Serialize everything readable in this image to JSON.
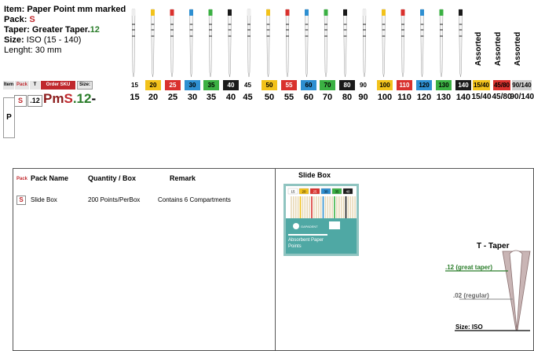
{
  "item": {
    "item_label": "Item: Paper Point mm marked",
    "pack_label": "Pack: ",
    "pack_value": "S",
    "taper_label": "Taper: Greater Taper.",
    "taper_value": "12",
    "size_label": "Size:",
    "size_value": " ISO (15 - 140)",
    "length_label": "Lenght: 30 mm"
  },
  "assorted_labels": [
    "Assorted",
    "Assorted",
    "Assorted"
  ],
  "header_tabs": {
    "item": "Item",
    "pack": "Pack",
    "t": "T",
    "order_sku": "Order SKU",
    "size": "Size:"
  },
  "size_chips": [
    {
      "label": "15",
      "color": "#ffffff",
      "text": "#000000"
    },
    {
      "label": "20",
      "color": "#f2c21b",
      "text": "#000000"
    },
    {
      "label": "25",
      "color": "#d9312d",
      "text": "#ffffff"
    },
    {
      "label": "30",
      "color": "#2e8fd1",
      "text": "#000000"
    },
    {
      "label": "35",
      "color": "#3bb043",
      "text": "#000000"
    },
    {
      "label": "40",
      "color": "#1a1a1a",
      "text": "#ffffff"
    },
    {
      "label": "45",
      "color": "#ffffff",
      "text": "#000000"
    },
    {
      "label": "50",
      "color": "#f2c21b",
      "text": "#000000"
    },
    {
      "label": "55",
      "color": "#d9312d",
      "text": "#ffffff"
    },
    {
      "label": "60",
      "color": "#2e8fd1",
      "text": "#000000"
    },
    {
      "label": "70",
      "color": "#3bb043",
      "text": "#000000"
    },
    {
      "label": "80",
      "color": "#1a1a1a",
      "text": "#ffffff"
    },
    {
      "label": "90",
      "color": "#ffffff",
      "text": "#000000"
    },
    {
      "label": "100",
      "color": "#f2c21b",
      "text": "#000000"
    },
    {
      "label": "110",
      "color": "#d9312d",
      "text": "#ffffff"
    },
    {
      "label": "120",
      "color": "#2e8fd1",
      "text": "#000000"
    },
    {
      "label": "130",
      "color": "#3bb043",
      "text": "#000000"
    },
    {
      "label": "140",
      "color": "#1a1a1a",
      "text": "#ffffff"
    },
    {
      "label": "15/40",
      "color": "#f2c21b",
      "text": "#000000"
    },
    {
      "label": "45/80",
      "color": "#d9312d",
      "text": "#000000"
    },
    {
      "label": "90/140",
      "color": "#cccccc",
      "text": "#000000"
    }
  ],
  "sku_row": {
    "pack": "S",
    "taper": ".12",
    "prefix": "Pm",
    "pack_letter": "S",
    "taper_code": ".12",
    "dash": "-",
    "sizes": [
      "15",
      "20",
      "25",
      "30",
      "35",
      "40",
      "45",
      "50",
      "55",
      "60",
      "70",
      "80",
      "90",
      "100",
      "110",
      "120",
      "130",
      "140",
      "15/40",
      "45/80",
      "90/140"
    ]
  },
  "p_label": "P",
  "table": {
    "pack_head": "Pack",
    "pack_name_head": "Pack Name",
    "quantity_head": "Quantity / Box",
    "remark_head": "Remark",
    "row_pack": "S",
    "row_name": "Slide Box",
    "row_quantity": "200 Points/PerBox",
    "row_remark": "Contains 6 Compartments"
  },
  "slide_box": {
    "title": "Slide Box",
    "chip_labels": [
      "15",
      "20",
      "25",
      "30",
      "35",
      "40"
    ],
    "brand": "GAPADENT",
    "product_line1": "Absorbent Paper",
    "product_line2": "Points"
  },
  "taper_diagram": {
    "title": "T - Taper",
    "great": ".12 (great taper)",
    "regular": ".02 (regular)",
    "size": "Size: ISO"
  },
  "colors": {
    "red_accent": "#c0282d",
    "green_accent": "#2a7d2a",
    "order_sku_bg": "#c0282d",
    "taper_fill": "#c9b5b5"
  }
}
